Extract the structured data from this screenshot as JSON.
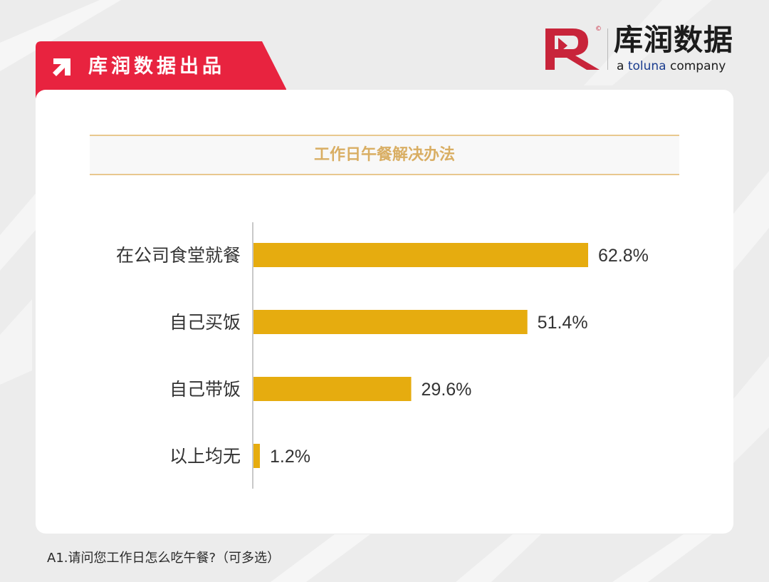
{
  "header": {
    "tab_label": "库润数据出品"
  },
  "logo": {
    "name_cn": "库润数据",
    "tagline_prefix": "a ",
    "tagline_brand": "toluna",
    "tagline_suffix": " company",
    "copyright_mark": "©",
    "brand_color": "#c8243a",
    "tagline_brand_color": "#1b3d8f"
  },
  "chart_data": {
    "type": "bar",
    "orientation": "horizontal",
    "title": "工作日午餐解决办法",
    "categories": [
      "在公司食堂就餐",
      "自己买饭",
      "自己带饭",
      "以上均无"
    ],
    "values": [
      62.8,
      51.4,
      29.6,
      1.2
    ],
    "value_labels": [
      "62.8%",
      "51.4%",
      "29.6%",
      "1.2%"
    ],
    "unit": "%",
    "xlim": [
      0,
      62.8
    ],
    "bar_color": "#e6ac0f",
    "grid": false,
    "legend": "none"
  },
  "footnote": "A1.请问您工作日怎么吃午餐?（可多选）",
  "colors": {
    "accent_red": "#e8233f",
    "title_gold": "#d9ae63",
    "bar_gold": "#e6ac0f"
  }
}
